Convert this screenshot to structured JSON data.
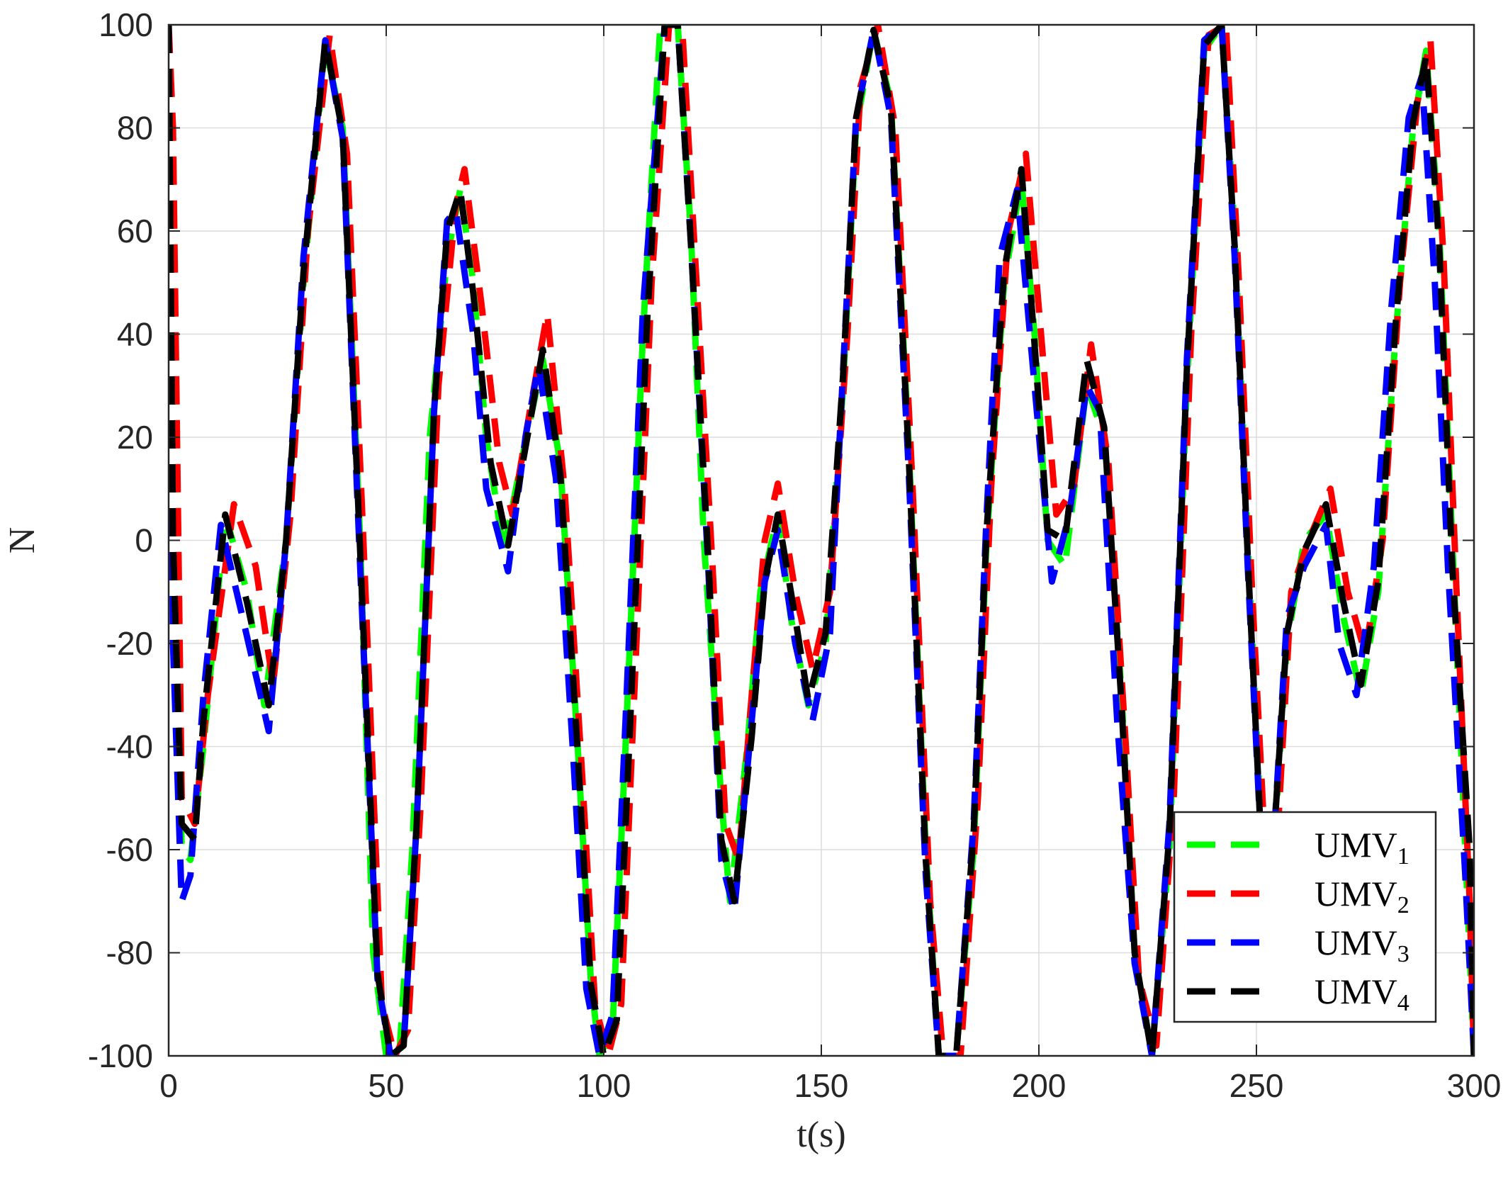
{
  "chart_data": {
    "type": "line",
    "title": "",
    "xlabel": "t(s)",
    "ylabel": "N",
    "xlim": [
      0,
      300
    ],
    "ylim": [
      -100,
      100
    ],
    "xticks": [
      0,
      50,
      100,
      150,
      200,
      250,
      300
    ],
    "yticks": [
      -100,
      -80,
      -60,
      -40,
      -20,
      0,
      20,
      40,
      60,
      80,
      100
    ],
    "xtick_labels": [
      "0",
      "50",
      "100",
      "150",
      "200",
      "250",
      "300"
    ],
    "ytick_labels": [
      "-100",
      "-80",
      "-60",
      "-40",
      "-20",
      "0",
      "20",
      "40",
      "60",
      "80",
      "100"
    ],
    "grid": true,
    "legend_position": "bottom-right",
    "line_style": "dashed",
    "series": [
      {
        "name": "UMV",
        "subscript": "1",
        "color": "#00ff00",
        "x": [
          0,
          1,
          3,
          5,
          8,
          13,
          18,
          22,
          27,
          31,
          36,
          40,
          44,
          47,
          50,
          53,
          56,
          60,
          64,
          67,
          70,
          73,
          77,
          81,
          86,
          90,
          94,
          97,
          99,
          102,
          105,
          109,
          113,
          117,
          120,
          123,
          127,
          129,
          133,
          136,
          140,
          143,
          147,
          151,
          155,
          158,
          162,
          166,
          170,
          174,
          177,
          181,
          185,
          188,
          192,
          196,
          199,
          202,
          206,
          211,
          215,
          219,
          222,
          226,
          230,
          234,
          238,
          242,
          245,
          248,
          251,
          254,
          257,
          261,
          266,
          270,
          274,
          278,
          282,
          286,
          289,
          292,
          295,
          298,
          300
        ],
        "y": [
          100,
          20,
          -60,
          -62,
          -40,
          5,
          -10,
          -32,
          0,
          50,
          96,
          80,
          0,
          -80,
          -100,
          -100,
          -60,
          20,
          55,
          68,
          50,
          20,
          -2,
          15,
          35,
          15,
          -40,
          -85,
          -100,
          -95,
          -40,
          40,
          100,
          100,
          60,
          0,
          -50,
          -70,
          -40,
          -10,
          5,
          -15,
          -32,
          -20,
          30,
          80,
          99,
          85,
          20,
          -60,
          -100,
          -100,
          -60,
          0,
          50,
          70,
          40,
          0,
          -5,
          30,
          20,
          -30,
          -80,
          -100,
          -60,
          30,
          95,
          100,
          60,
          0,
          -55,
          -60,
          -20,
          0,
          5,
          -15,
          -30,
          -10,
          40,
          80,
          95,
          60,
          0,
          -60,
          -100
        ]
      },
      {
        "name": "UMV",
        "subscript": "2",
        "color": "#ff0000",
        "x": [
          0,
          1,
          3,
          6,
          9,
          15,
          20,
          24,
          28,
          32,
          37,
          41,
          45,
          49,
          52,
          55,
          58,
          62,
          66,
          68,
          72,
          76,
          79,
          83,
          87,
          91,
          95,
          98,
          101,
          104,
          107,
          111,
          115,
          118,
          121,
          125,
          128,
          131,
          134,
          137,
          140,
          144,
          148,
          152,
          156,
          159,
          163,
          167,
          171,
          175,
          178,
          182,
          186,
          189,
          193,
          197,
          201,
          204,
          208,
          212,
          216,
          220,
          223,
          227,
          231,
          235,
          239,
          243,
          246,
          249,
          252,
          255,
          258,
          262,
          267,
          271,
          275,
          279,
          283,
          287,
          290,
          293,
          296,
          299,
          300
        ],
        "y": [
          100,
          80,
          -50,
          -55,
          -30,
          7,
          -5,
          -28,
          5,
          60,
          98,
          75,
          -5,
          -90,
          -100,
          -95,
          -50,
          30,
          65,
          72,
          45,
          15,
          5,
          25,
          44,
          10,
          -45,
          -90,
          -100,
          -90,
          -30,
          50,
          100,
          100,
          55,
          -5,
          -55,
          -62,
          -30,
          0,
          11,
          -10,
          -25,
          -10,
          40,
          88,
          100,
          80,
          10,
          -70,
          -100,
          -100,
          -50,
          10,
          60,
          75,
          35,
          5,
          10,
          38,
          15,
          -40,
          -85,
          -98,
          -50,
          40,
          98,
          100,
          50,
          -10,
          -60,
          -55,
          -10,
          0,
          10,
          -10,
          -22,
          0,
          50,
          85,
          97,
          55,
          -10,
          -70,
          -100
        ]
      },
      {
        "name": "UMV",
        "subscript": "3",
        "color": "#0000ff",
        "x": [
          0,
          1,
          3,
          5,
          8,
          12,
          17,
          23,
          27,
          31,
          36,
          40,
          44,
          48,
          51,
          54,
          57,
          61,
          64,
          66,
          70,
          73,
          78,
          82,
          85,
          89,
          93,
          96,
          99,
          102,
          105,
          109,
          114,
          117,
          120,
          124,
          127,
          130,
          134,
          137,
          140,
          144,
          148,
          152,
          155,
          158,
          162,
          166,
          170,
          174,
          177,
          181,
          185,
          188,
          191,
          195,
          199,
          203,
          207,
          211,
          214,
          218,
          222,
          226,
          230,
          234,
          238,
          242,
          245,
          248,
          251,
          254,
          257,
          261,
          266,
          269,
          273,
          277,
          281,
          285,
          288,
          291,
          294,
          298,
          300
        ],
        "y": [
          100,
          -20,
          -70,
          -65,
          -30,
          3,
          -15,
          -37,
          0,
          55,
          97,
          78,
          -5,
          -85,
          -100,
          -98,
          -55,
          25,
          62,
          64,
          40,
          10,
          -6,
          20,
          34,
          12,
          -42,
          -87,
          -100,
          -92,
          -35,
          45,
          100,
          100,
          58,
          -5,
          -62,
          -72,
          -35,
          -8,
          2,
          -20,
          -35,
          -18,
          33,
          82,
          99,
          82,
          15,
          -65,
          -100,
          -100,
          -55,
          5,
          55,
          68,
          30,
          -8,
          5,
          30,
          25,
          -35,
          -82,
          -100,
          -55,
          35,
          97,
          100,
          55,
          -5,
          -58,
          -58,
          -15,
          -5,
          3,
          -20,
          -30,
          -5,
          45,
          82,
          90,
          50,
          -5,
          -65,
          -100
        ]
      },
      {
        "name": "UMV",
        "subscript": "4",
        "color": "#000000",
        "x": [
          0,
          1,
          3,
          6,
          8,
          13,
          18,
          23,
          27,
          31,
          36,
          40,
          44,
          48,
          51,
          54,
          57,
          61,
          64,
          67,
          70,
          74,
          78,
          82,
          86,
          90,
          94,
          97,
          100,
          103,
          106,
          110,
          114,
          117,
          120,
          124,
          127,
          130,
          134,
          137,
          140,
          144,
          147,
          151,
          155,
          158,
          162,
          166,
          170,
          174,
          177,
          181,
          185,
          188,
          192,
          196,
          199,
          202,
          206,
          211,
          215,
          219,
          222,
          226,
          230,
          234,
          238,
          242,
          245,
          248,
          251,
          254,
          257,
          261,
          266,
          270,
          274,
          278,
          282,
          286,
          289,
          292,
          295,
          299,
          300
        ],
        "y": [
          100,
          0,
          -55,
          -58,
          -35,
          5,
          -12,
          -32,
          0,
          52,
          97,
          79,
          -2,
          -84,
          -100,
          -98,
          -55,
          25,
          60,
          68,
          48,
          15,
          -1,
          18,
          37,
          13,
          -41,
          -86,
          -100,
          -93,
          -37,
          43,
          100,
          100,
          58,
          -3,
          -58,
          -70,
          -38,
          -8,
          5,
          -15,
          -31,
          -18,
          32,
          82,
          99,
          84,
          18,
          -62,
          -100,
          -100,
          -57,
          2,
          52,
          72,
          38,
          2,
          0,
          35,
          22,
          -32,
          -80,
          -100,
          -57,
          33,
          96,
          100,
          57,
          -3,
          -57,
          -58,
          -18,
          -2,
          7,
          -12,
          -28,
          -8,
          42,
          81,
          94,
          57,
          -5,
          -60,
          -100
        ]
      }
    ]
  }
}
